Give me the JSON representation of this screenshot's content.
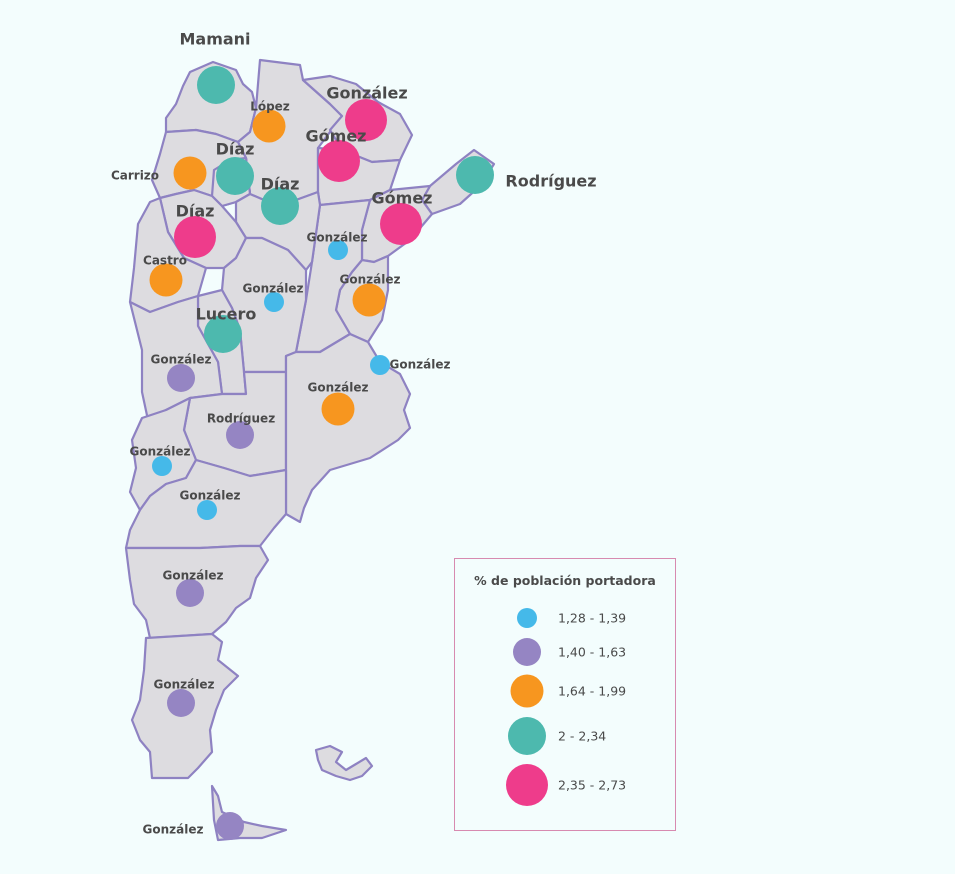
{
  "colors": {
    "c1": "#45b9e9",
    "c2": "#9585c3",
    "c3": "#f7961f",
    "c4": "#4db9ae",
    "c5": "#ee3c8b"
  },
  "legend": {
    "title": "% de población portadora",
    "items": [
      {
        "label": "1,28 - 1,39",
        "color": "#45b9e9"
      },
      {
        "label": "1,40 - 1,63",
        "color": "#9585c3"
      },
      {
        "label": "1,64 - 1,99",
        "color": "#f7961f"
      },
      {
        "label": "2 - 2,34",
        "color": "#4db9ae"
      },
      {
        "label": "2,35 - 2,73",
        "color": "#ee3c8b"
      }
    ]
  },
  "provinces": [
    {
      "surname": "Mamani",
      "class": 4
    },
    {
      "surname": "López",
      "class": 3
    },
    {
      "surname": "González",
      "class": 5
    },
    {
      "surname": "Gómez",
      "class": 5
    },
    {
      "surname": "Rodríguez",
      "class": 4
    },
    {
      "surname": "Díaz",
      "class": 4
    },
    {
      "surname": "Carrizo",
      "class": 3
    },
    {
      "surname": "Díaz",
      "class": 4
    },
    {
      "surname": "Gómez",
      "class": 5
    },
    {
      "surname": "Díaz",
      "class": 5
    },
    {
      "surname": "González",
      "class": 1
    },
    {
      "surname": "Castro",
      "class": 3
    },
    {
      "surname": "González",
      "class": 3
    },
    {
      "surname": "González",
      "class": 1
    },
    {
      "surname": "Lucero",
      "class": 4
    },
    {
      "surname": "González",
      "class": 1
    },
    {
      "surname": "González",
      "class": 2
    },
    {
      "surname": "González",
      "class": 3
    },
    {
      "surname": "Rodríguez",
      "class": 2
    },
    {
      "surname": "González",
      "class": 1
    },
    {
      "surname": "González",
      "class": 1
    },
    {
      "surname": "González",
      "class": 2
    },
    {
      "surname": "González",
      "class": 2
    },
    {
      "surname": "González",
      "class": 2
    }
  ]
}
